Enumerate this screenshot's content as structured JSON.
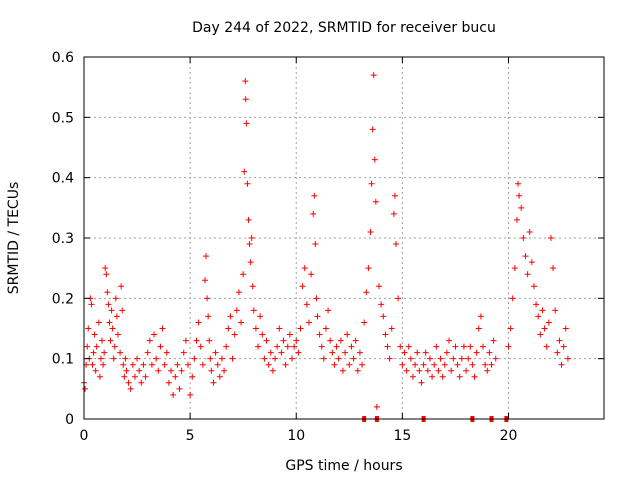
{
  "chart_data": {
    "type": "scatter",
    "title": "Day 244 of 2022, SRMTID for receiver bucu",
    "xlabel": "GPS time / hours",
    "ylabel": "SRMTID / TECUs",
    "xlim": [
      0,
      24.5
    ],
    "ylim": [
      0,
      0.6
    ],
    "x_ticks": [
      0,
      5,
      10,
      15,
      20
    ],
    "y_ticks": [
      0,
      0.1,
      0.2,
      0.3,
      0.4,
      0.5,
      0.6
    ],
    "x_tick_labels": [
      "0",
      "5",
      "10",
      "15",
      "20"
    ],
    "y_tick_labels": [
      "0",
      "0.1",
      "0.2",
      "0.3",
      "0.4",
      "0.5",
      "0.6"
    ],
    "grid": true,
    "marker": "+",
    "color": "#ff0000",
    "series": [
      {
        "name": "SRMTID",
        "points": [
          [
            0.0,
            0.06
          ],
          [
            0.05,
            0.05
          ],
          [
            0.1,
            0.09
          ],
          [
            0.15,
            0.12
          ],
          [
            0.2,
            0.15
          ],
          [
            0.25,
            0.1
          ],
          [
            0.3,
            0.2
          ],
          [
            0.35,
            0.19
          ],
          [
            0.4,
            0.09
          ],
          [
            0.45,
            0.11
          ],
          [
            0.5,
            0.14
          ],
          [
            0.55,
            0.08
          ],
          [
            0.6,
            0.12
          ],
          [
            0.7,
            0.16
          ],
          [
            0.75,
            0.07
          ],
          [
            0.8,
            0.1
          ],
          [
            0.85,
            0.13
          ],
          [
            0.9,
            0.09
          ],
          [
            0.95,
            0.11
          ],
          [
            1.0,
            0.25
          ],
          [
            1.05,
            0.24
          ],
          [
            1.1,
            0.21
          ],
          [
            1.15,
            0.19
          ],
          [
            1.2,
            0.16
          ],
          [
            1.25,
            0.13
          ],
          [
            1.3,
            0.18
          ],
          [
            1.35,
            0.15
          ],
          [
            1.4,
            0.1
          ],
          [
            1.45,
            0.12
          ],
          [
            1.5,
            0.2
          ],
          [
            1.55,
            0.17
          ],
          [
            1.6,
            0.14
          ],
          [
            1.7,
            0.11
          ],
          [
            1.75,
            0.22
          ],
          [
            1.8,
            0.18
          ],
          [
            1.85,
            0.09
          ],
          [
            1.9,
            0.07
          ],
          [
            1.95,
            0.1
          ],
          [
            2.0,
            0.08
          ],
          [
            2.1,
            0.06
          ],
          [
            2.2,
            0.05
          ],
          [
            2.3,
            0.09
          ],
          [
            2.4,
            0.07
          ],
          [
            2.5,
            0.1
          ],
          [
            2.6,
            0.08
          ],
          [
            2.7,
            0.06
          ],
          [
            2.8,
            0.09
          ],
          [
            2.9,
            0.07
          ],
          [
            3.0,
            0.11
          ],
          [
            3.1,
            0.13
          ],
          [
            3.2,
            0.09
          ],
          [
            3.3,
            0.14
          ],
          [
            3.4,
            0.1
          ],
          [
            3.5,
            0.08
          ],
          [
            3.6,
            0.12
          ],
          [
            3.7,
            0.15
          ],
          [
            3.8,
            0.09
          ],
          [
            3.9,
            0.11
          ],
          [
            4.0,
            0.06
          ],
          [
            4.1,
            0.08
          ],
          [
            4.2,
            0.04
          ],
          [
            4.3,
            0.07
          ],
          [
            4.4,
            0.09
          ],
          [
            4.5,
            0.05
          ],
          [
            4.6,
            0.08
          ],
          [
            4.7,
            0.11
          ],
          [
            4.8,
            0.13
          ],
          [
            4.9,
            0.09
          ],
          [
            5.0,
            0.04
          ],
          [
            5.1,
            0.07
          ],
          [
            5.2,
            0.1
          ],
          [
            5.3,
            0.13
          ],
          [
            5.4,
            0.16
          ],
          [
            5.5,
            0.12
          ],
          [
            5.6,
            0.09
          ],
          [
            5.7,
            0.23
          ],
          [
            5.75,
            0.27
          ],
          [
            5.8,
            0.2
          ],
          [
            5.85,
            0.17
          ],
          [
            5.9,
            0.13
          ],
          [
            5.95,
            0.1
          ],
          [
            6.0,
            0.08
          ],
          [
            6.1,
            0.06
          ],
          [
            6.2,
            0.11
          ],
          [
            6.3,
            0.09
          ],
          [
            6.4,
            0.07
          ],
          [
            6.5,
            0.1
          ],
          [
            6.6,
            0.08
          ],
          [
            6.7,
            0.12
          ],
          [
            6.8,
            0.15
          ],
          [
            6.9,
            0.17
          ],
          [
            7.0,
            0.1
          ],
          [
            7.1,
            0.14
          ],
          [
            7.2,
            0.18
          ],
          [
            7.3,
            0.21
          ],
          [
            7.4,
            0.16
          ],
          [
            7.5,
            0.24
          ],
          [
            7.55,
            0.41
          ],
          [
            7.6,
            0.56
          ],
          [
            7.62,
            0.53
          ],
          [
            7.65,
            0.49
          ],
          [
            7.7,
            0.39
          ],
          [
            7.75,
            0.33
          ],
          [
            7.8,
            0.29
          ],
          [
            7.85,
            0.26
          ],
          [
            7.9,
            0.3
          ],
          [
            7.95,
            0.22
          ],
          [
            8.0,
            0.18
          ],
          [
            8.1,
            0.15
          ],
          [
            8.2,
            0.12
          ],
          [
            8.3,
            0.17
          ],
          [
            8.4,
            0.14
          ],
          [
            8.5,
            0.1
          ],
          [
            8.6,
            0.13
          ],
          [
            8.7,
            0.09
          ],
          [
            8.8,
            0.11
          ],
          [
            8.9,
            0.08
          ],
          [
            9.0,
            0.1
          ],
          [
            9.1,
            0.12
          ],
          [
            9.2,
            0.15
          ],
          [
            9.3,
            0.11
          ],
          [
            9.4,
            0.13
          ],
          [
            9.5,
            0.09
          ],
          [
            9.6,
            0.12
          ],
          [
            9.7,
            0.14
          ],
          [
            9.8,
            0.1
          ],
          [
            9.9,
            0.12
          ],
          [
            10.0,
            0.13
          ],
          [
            10.1,
            0.11
          ],
          [
            10.2,
            0.15
          ],
          [
            10.3,
            0.22
          ],
          [
            10.4,
            0.25
          ],
          [
            10.5,
            0.19
          ],
          [
            10.6,
            0.16
          ],
          [
            10.7,
            0.24
          ],
          [
            10.8,
            0.34
          ],
          [
            10.85,
            0.37
          ],
          [
            10.9,
            0.29
          ],
          [
            10.95,
            0.2
          ],
          [
            11.0,
            0.17
          ],
          [
            11.1,
            0.14
          ],
          [
            11.2,
            0.12
          ],
          [
            11.3,
            0.1
          ],
          [
            11.4,
            0.15
          ],
          [
            11.5,
            0.18
          ],
          [
            11.6,
            0.13
          ],
          [
            11.7,
            0.11
          ],
          [
            11.8,
            0.09
          ],
          [
            11.9,
            0.12
          ],
          [
            12.0,
            0.1
          ],
          [
            12.1,
            0.13
          ],
          [
            12.2,
            0.08
          ],
          [
            12.3,
            0.11
          ],
          [
            12.4,
            0.14
          ],
          [
            12.5,
            0.09
          ],
          [
            12.6,
            0.12
          ],
          [
            12.7,
            0.1
          ],
          [
            12.8,
            0.13
          ],
          [
            12.9,
            0.08
          ],
          [
            13.0,
            0.11
          ],
          [
            13.1,
            0.09
          ],
          [
            13.2,
            0.16
          ],
          [
            13.3,
            0.21
          ],
          [
            13.4,
            0.25
          ],
          [
            13.5,
            0.31
          ],
          [
            13.55,
            0.39
          ],
          [
            13.6,
            0.48
          ],
          [
            13.65,
            0.57
          ],
          [
            13.7,
            0.43
          ],
          [
            13.75,
            0.36
          ],
          [
            13.8,
            0.02
          ],
          [
            13.9,
            0.22
          ],
          [
            14.0,
            0.19
          ],
          [
            14.1,
            0.17
          ],
          [
            14.2,
            0.14
          ],
          [
            14.3,
            0.12
          ],
          [
            14.4,
            0.1
          ],
          [
            14.5,
            0.15
          ],
          [
            14.6,
            0.34
          ],
          [
            14.65,
            0.37
          ],
          [
            14.7,
            0.29
          ],
          [
            14.8,
            0.2
          ],
          [
            14.9,
            0.12
          ],
          [
            15.0,
            0.09
          ],
          [
            15.1,
            0.11
          ],
          [
            15.2,
            0.08
          ],
          [
            15.3,
            0.12
          ],
          [
            15.4,
            0.1
          ],
          [
            15.5,
            0.07
          ],
          [
            15.6,
            0.09
          ],
          [
            15.7,
            0.11
          ],
          [
            15.8,
            0.08
          ],
          [
            15.9,
            0.06
          ],
          [
            16.0,
            0.09
          ],
          [
            16.1,
            0.11
          ],
          [
            16.2,
            0.08
          ],
          [
            16.3,
            0.1
          ],
          [
            16.4,
            0.07
          ],
          [
            16.5,
            0.09
          ],
          [
            16.6,
            0.12
          ],
          [
            16.7,
            0.08
          ],
          [
            16.8,
            0.1
          ],
          [
            16.9,
            0.07
          ],
          [
            17.0,
            0.09
          ],
          [
            17.1,
            0.11
          ],
          [
            17.2,
            0.13
          ],
          [
            17.3,
            0.08
          ],
          [
            17.4,
            0.1
          ],
          [
            17.5,
            0.12
          ],
          [
            17.6,
            0.09
          ],
          [
            17.7,
            0.07
          ],
          [
            17.8,
            0.1
          ],
          [
            17.9,
            0.12
          ],
          [
            18.0,
            0.08
          ],
          [
            18.1,
            0.1
          ],
          [
            18.2,
            0.12
          ],
          [
            18.3,
            0.09
          ],
          [
            18.4,
            0.07
          ],
          [
            18.5,
            0.11
          ],
          [
            18.6,
            0.15
          ],
          [
            18.7,
            0.17
          ],
          [
            18.8,
            0.12
          ],
          [
            18.9,
            0.09
          ],
          [
            19.0,
            0.08
          ],
          [
            19.1,
            0.11
          ],
          [
            19.2,
            0.09
          ],
          [
            19.3,
            0.13
          ],
          [
            19.4,
            0.1
          ],
          [
            20.0,
            0.12
          ],
          [
            20.1,
            0.15
          ],
          [
            20.2,
            0.2
          ],
          [
            20.3,
            0.25
          ],
          [
            20.4,
            0.33
          ],
          [
            20.45,
            0.39
          ],
          [
            20.5,
            0.37
          ],
          [
            20.6,
            0.35
          ],
          [
            20.7,
            0.3
          ],
          [
            20.8,
            0.27
          ],
          [
            20.9,
            0.24
          ],
          [
            21.0,
            0.31
          ],
          [
            21.1,
            0.26
          ],
          [
            21.2,
            0.22
          ],
          [
            21.3,
            0.19
          ],
          [
            21.4,
            0.17
          ],
          [
            21.5,
            0.14
          ],
          [
            21.6,
            0.18
          ],
          [
            21.7,
            0.15
          ],
          [
            21.8,
            0.12
          ],
          [
            21.9,
            0.16
          ],
          [
            22.0,
            0.3
          ],
          [
            22.1,
            0.25
          ],
          [
            22.2,
            0.18
          ],
          [
            22.3,
            0.11
          ],
          [
            22.4,
            0.13
          ],
          [
            22.5,
            0.09
          ],
          [
            22.6,
            0.12
          ],
          [
            22.7,
            0.15
          ],
          [
            22.8,
            0.1
          ]
        ]
      }
    ],
    "gap_markers_x": [
      13.2,
      13.8,
      16.0,
      18.3,
      19.2,
      19.9
    ]
  }
}
